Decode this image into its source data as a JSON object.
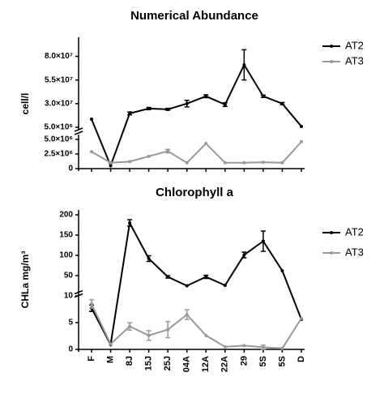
{
  "chart_data": [
    {
      "type": "line",
      "title": "Numerical Abundance",
      "y_label": "cell/l",
      "categories": [
        null,
        null,
        null,
        null,
        null,
        null,
        null,
        null,
        null,
        null,
        null,
        null
      ],
      "y_segments": [
        {
          "ylim": [
            5000000,
            95000000
          ],
          "yticks": [
            {
              "value": 80000000,
              "label": "8.0×10⁷"
            },
            {
              "value": 55000000,
              "label": "5.5×10⁷"
            },
            {
              "value": 30000000,
              "label": "3.0×10⁷"
            },
            {
              "value": 5000000,
              "label": "5.0×10⁶"
            }
          ]
        },
        {
          "ylim": [
            0,
            5000000
          ],
          "yticks": [
            {
              "value": 5000000,
              "label": "5.0×10⁶"
            },
            {
              "value": 2500000,
              "label": "2.5×10⁶"
            },
            0
          ]
        }
      ],
      "series": [
        {
          "name": "AT2",
          "color": "#000000",
          "values": [
            13600000,
            500000,
            19700000,
            24800000,
            24000000,
            30000000,
            37800000,
            29000000,
            71000000,
            37800000,
            30000000,
            5900000
          ],
          "errors": [
            0,
            0,
            1500000,
            1200000,
            1000000,
            3500000,
            1500000,
            2000000,
            16000000,
            1200000,
            1200000,
            0
          ]
        },
        {
          "name": "AT3",
          "color": "#999999",
          "values": [
            2900000,
            1000000,
            1200000,
            2100000,
            3000000,
            1000000,
            4300000,
            1000000,
            1000000,
            1100000,
            1000000,
            4600000
          ],
          "errors": [
            0,
            0,
            0,
            0,
            300000,
            0,
            0,
            0,
            0,
            0,
            0,
            0
          ]
        }
      ]
    },
    {
      "type": "line",
      "title": "Chlorophyll a",
      "y_label": "CHLa mg/m³",
      "categories": [
        "F",
        "M",
        "8J",
        "15J",
        "25J",
        "04A",
        "12A",
        "22A",
        "29",
        "5S",
        "5S",
        "D"
      ],
      "y_segments": [
        {
          "ylim": [
            15,
            200
          ],
          "yticks": [
            200,
            150,
            100,
            50
          ]
        },
        {
          "ylim": [
            0,
            10
          ],
          "yticks": [
            10,
            5,
            0
          ]
        }
      ],
      "series": [
        {
          "name": "AT2",
          "color": "#000000",
          "values": [
            7.7,
            0.9,
            180,
            92,
            47,
            25,
            47,
            26,
            101,
            135,
            62,
            5.6
          ],
          "errors": [
            0.6,
            0,
            8,
            7,
            3,
            0,
            4,
            0,
            7,
            25,
            0,
            0
          ]
        },
        {
          "name": "AT3",
          "color": "#999999",
          "values": [
            8.5,
            1,
            4.3,
            2.6,
            3.7,
            6.5,
            2.6,
            0.5,
            0.7,
            0.4,
            0.2,
            5.8
          ],
          "errors": [
            0.8,
            0,
            0.7,
            0.9,
            1.5,
            0.9,
            0,
            0,
            0,
            0.4,
            0,
            0
          ]
        }
      ]
    }
  ]
}
